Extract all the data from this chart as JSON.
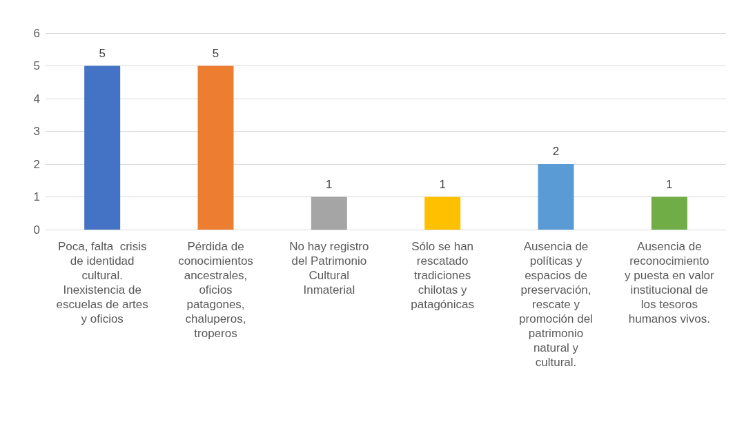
{
  "chart_data": {
    "type": "bar",
    "categories": [
      "Poca, falta  crisis\nde identidad\ncultural.\nInexistencia de\nescuelas de artes\ny oficios",
      "Pérdida de\nconocimientos\nancestrales,\noficios\npatagones,\nchaluperos,\ntroperos",
      "No hay registro\ndel Patrimonio\nCultural\nInmaterial",
      "Sólo se han\nrescatado\ntradiciones\nchilotas y\npatagónicas",
      "Ausencia de\npolíticas y\nespacios de\npreservación,\nrescate y\npromoción del\npatrimonio\nnatural y\ncultural.",
      "Ausencia de\nreconocimiento\ny puesta en valor\ninstitucional de\nlos tesoros\nhumanos vivos."
    ],
    "values": [
      5,
      5,
      1,
      1,
      2,
      1
    ],
    "colors": [
      "#4472c4",
      "#ed7d31",
      "#a5a5a5",
      "#ffc000",
      "#5b9bd5",
      "#70ad47"
    ],
    "ylim": [
      0,
      6
    ],
    "yticks": [
      0,
      1,
      2,
      3,
      4,
      5,
      6
    ],
    "grid": "y",
    "data_labels": true
  }
}
